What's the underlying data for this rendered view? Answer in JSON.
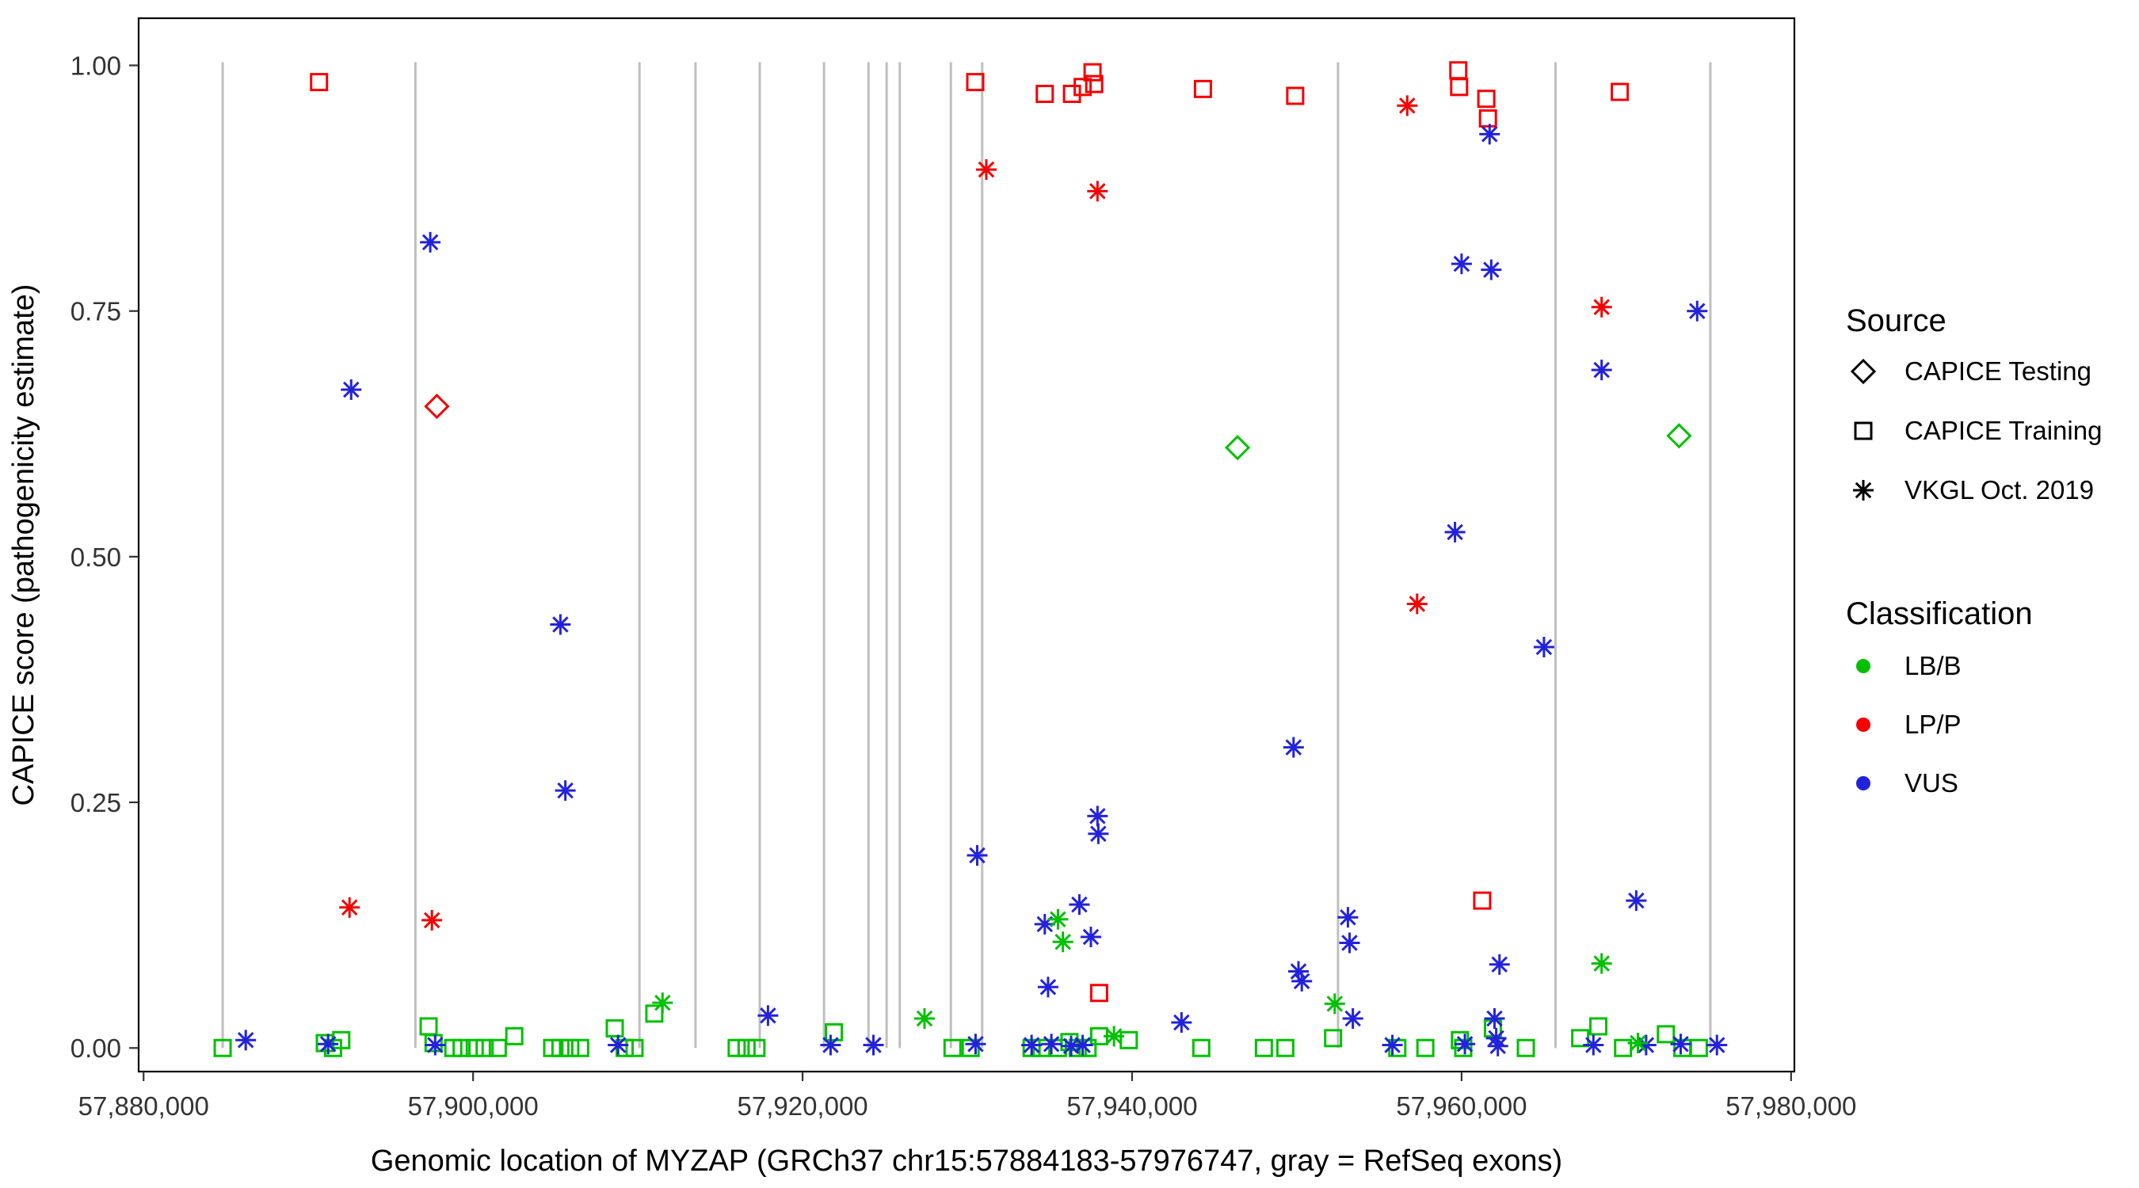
{
  "figure_title": "",
  "chart_data": {
    "type": "scatter",
    "title": "",
    "xlabel": "Genomic location of MYZAP (GRCh37 chr15:57884183-57976747, gray = RefSeq exons)",
    "ylabel": "CAPICE score (pathogenicity estimate)",
    "xlim": [
      57879700,
      57980200
    ],
    "ylim": [
      -0.024,
      1.048
    ],
    "grid": false,
    "x_ticks": [
      57880000,
      57900000,
      57920000,
      57940000,
      57960000,
      57980000
    ],
    "x_tick_labels": [
      "57,880,000",
      "57,900,000",
      "57,920,000",
      "57,940,000",
      "57,960,000",
      "57,980,000"
    ],
    "y_ticks": [
      0.0,
      0.25,
      0.5,
      0.75,
      1.0
    ],
    "y_tick_labels": [
      "0.00",
      "0.25",
      "0.50",
      "0.75",
      "1.00"
    ],
    "exon_note": "gray vertical lines = RefSeq exons",
    "exon_color": "#BFBFBF",
    "exon_positions": [
      57884800,
      57896500,
      57910100,
      57913500,
      57917400,
      57921300,
      57924000,
      57925100,
      57925900,
      57929000,
      57930900,
      57952500,
      57965700,
      57975100
    ],
    "series": [
      {
        "name": "CAPICE Testing / LP/P",
        "source": "CAPICE Testing",
        "classification": "LP/P",
        "marker": "diamond",
        "color": "#F50000",
        "points": [
          [
            57897800,
            0.653
          ]
        ]
      },
      {
        "name": "CAPICE Testing / LB/B",
        "source": "CAPICE Testing",
        "classification": "LB/B",
        "marker": "diamond",
        "color": "#00C000",
        "points": [
          [
            57946400,
            0.611
          ],
          [
            57973200,
            0.623
          ]
        ]
      },
      {
        "name": "CAPICE Training / LP/P",
        "source": "CAPICE Training",
        "classification": "LP/P",
        "marker": "square",
        "color": "#F50000",
        "points": [
          [
            57890650,
            0.983
          ],
          [
            57930480,
            0.983
          ],
          [
            57934700,
            0.971
          ],
          [
            57936350,
            0.971
          ],
          [
            57937000,
            0.978
          ],
          [
            57937600,
            0.993
          ],
          [
            57937700,
            0.981
          ],
          [
            57944300,
            0.976
          ],
          [
            57949900,
            0.969
          ],
          [
            57959800,
            0.995
          ],
          [
            57959850,
            0.978
          ],
          [
            57961500,
            0.966
          ],
          [
            57961600,
            0.946
          ],
          [
            57969600,
            0.973
          ],
          [
            57961250,
            0.15
          ],
          [
            57938000,
            0.056
          ]
        ]
      },
      {
        "name": "CAPICE Training / LB/B",
        "source": "CAPICE Training",
        "classification": "LB/B",
        "marker": "square",
        "color": "#00C000",
        "points": [
          [
            57884800,
            0.0
          ],
          [
            57891000,
            0.005
          ],
          [
            57891500,
            0.0
          ],
          [
            57892000,
            0.008
          ],
          [
            57897300,
            0.022
          ],
          [
            57897600,
            0.005
          ],
          [
            57898800,
            0.0
          ],
          [
            57899300,
            0.0
          ],
          [
            57900100,
            0.0
          ],
          [
            57900700,
            0.0
          ],
          [
            57901500,
            0.0
          ],
          [
            57902500,
            0.012
          ],
          [
            57904800,
            0.0
          ],
          [
            57905300,
            0.0
          ],
          [
            57905900,
            0.0
          ],
          [
            57906500,
            0.0
          ],
          [
            57908600,
            0.02
          ],
          [
            57909200,
            0.0
          ],
          [
            57909800,
            0.0
          ],
          [
            57911000,
            0.035
          ],
          [
            57916000,
            0.0
          ],
          [
            57916600,
            0.0
          ],
          [
            57917200,
            0.0
          ],
          [
            57921900,
            0.016
          ],
          [
            57929100,
            0.0
          ],
          [
            57930200,
            0.0
          ],
          [
            57933900,
            0.0
          ],
          [
            57934500,
            0.0
          ],
          [
            57935500,
            0.0
          ],
          [
            57936200,
            0.006
          ],
          [
            57936700,
            0.0
          ],
          [
            57937300,
            0.0
          ],
          [
            57938000,
            0.012
          ],
          [
            57939800,
            0.008
          ],
          [
            57944200,
            0.0
          ],
          [
            57948000,
            0.0
          ],
          [
            57949300,
            0.0
          ],
          [
            57952200,
            0.01
          ],
          [
            57956100,
            0.0
          ],
          [
            57957800,
            0.0
          ],
          [
            57959900,
            0.008
          ],
          [
            57960100,
            0.0
          ],
          [
            57961900,
            0.02
          ],
          [
            57963900,
            0.0
          ],
          [
            57967200,
            0.01
          ],
          [
            57968300,
            0.022
          ],
          [
            57969800,
            0.0
          ],
          [
            57972400,
            0.014
          ],
          [
            57973400,
            0.0
          ],
          [
            57974400,
            0.0
          ]
        ]
      },
      {
        "name": "VKGL Oct. 2019 / LP/P",
        "source": "VKGL Oct. 2019",
        "classification": "LP/P",
        "marker": "asterisk",
        "color": "#F50000",
        "points": [
          [
            57892500,
            0.143
          ],
          [
            57897500,
            0.13
          ],
          [
            57931150,
            0.894
          ],
          [
            57937900,
            0.872
          ],
          [
            57956700,
            0.959
          ],
          [
            57957300,
            0.452
          ],
          [
            57968500,
            0.754
          ]
        ]
      },
      {
        "name": "VKGL Oct. 2019 / VUS",
        "source": "VKGL Oct. 2019",
        "classification": "VUS",
        "marker": "asterisk",
        "color": "#2222DD",
        "points": [
          [
            57892600,
            0.67
          ],
          [
            57897400,
            0.82
          ],
          [
            57905300,
            0.431
          ],
          [
            57905600,
            0.262
          ],
          [
            57961700,
            0.93
          ],
          [
            57960000,
            0.798
          ],
          [
            57961800,
            0.792
          ],
          [
            57959600,
            0.525
          ],
          [
            57965000,
            0.408
          ],
          [
            57949800,
            0.306
          ],
          [
            57930600,
            0.196
          ],
          [
            57937900,
            0.236
          ],
          [
            57937950,
            0.218
          ],
          [
            57936800,
            0.146
          ],
          [
            57937500,
            0.113
          ],
          [
            57934700,
            0.126
          ],
          [
            57934900,
            0.062
          ],
          [
            57950100,
            0.078
          ],
          [
            57950300,
            0.068
          ],
          [
            57953100,
            0.133
          ],
          [
            57953200,
            0.107
          ],
          [
            57953400,
            0.03
          ],
          [
            57962300,
            0.085
          ],
          [
            57968500,
            0.69
          ],
          [
            57970600,
            0.15
          ],
          [
            57974300,
            0.75
          ],
          [
            57943000,
            0.026
          ],
          [
            57917900,
            0.033
          ],
          [
            57886200,
            0.008
          ],
          [
            57891200,
            0.004
          ],
          [
            57897700,
            0.003
          ],
          [
            57908800,
            0.003
          ],
          [
            57921700,
            0.003
          ],
          [
            57924300,
            0.003
          ],
          [
            57930500,
            0.004
          ],
          [
            57933900,
            0.003
          ],
          [
            57935100,
            0.004
          ],
          [
            57936300,
            0.002
          ],
          [
            57937000,
            0.003
          ],
          [
            57955800,
            0.003
          ],
          [
            57960200,
            0.004
          ],
          [
            57962000,
            0.03
          ],
          [
            57962100,
            0.01
          ],
          [
            57962200,
            0.002
          ],
          [
            57968000,
            0.003
          ],
          [
            57971200,
            0.003
          ],
          [
            57973300,
            0.004
          ],
          [
            57975500,
            0.003
          ]
        ]
      },
      {
        "name": "VKGL Oct. 2019 / LB/B",
        "source": "VKGL Oct. 2019",
        "classification": "LB/B",
        "marker": "asterisk",
        "color": "#00C000",
        "points": [
          [
            57911500,
            0.046
          ],
          [
            57927400,
            0.03
          ],
          [
            57935500,
            0.131
          ],
          [
            57935800,
            0.108
          ],
          [
            57938900,
            0.012
          ],
          [
            57952300,
            0.045
          ],
          [
            57968500,
            0.086
          ],
          [
            57970700,
            0.005
          ]
        ]
      }
    ]
  },
  "legend": {
    "source": {
      "title": "Source",
      "items": [
        {
          "label": "CAPICE Testing",
          "marker": "diamond"
        },
        {
          "label": "CAPICE Training",
          "marker": "square"
        },
        {
          "label": "VKGL Oct. 2019",
          "marker": "asterisk"
        }
      ]
    },
    "classification": {
      "title": "Classification",
      "items": [
        {
          "label": "LB/B",
          "color": "#00C000"
        },
        {
          "label": "LP/P",
          "color": "#F50000"
        },
        {
          "label": "VUS",
          "color": "#2222DD"
        }
      ]
    }
  }
}
